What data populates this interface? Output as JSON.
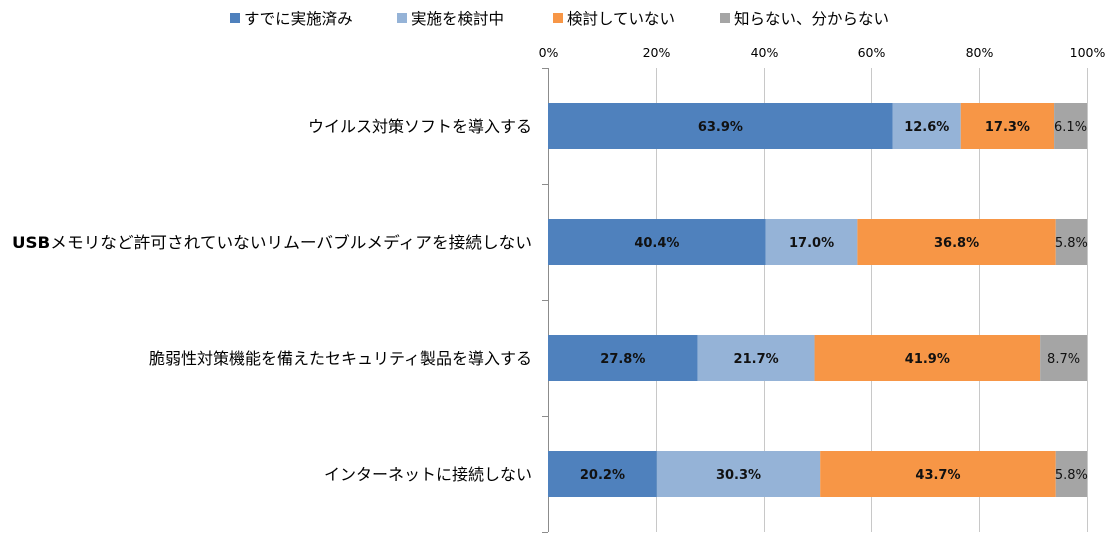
{
  "chart_data": {
    "type": "bar",
    "orientation": "horizontal",
    "stacked": "percent",
    "categories": [
      "ウイルス対策ソフトを導入する",
      "USBメモリなど許可されていないリムーバブルメディアを接続しない",
      "脆弱性対策機能を備えたセキュリティ製品を導入する",
      "インターネットに接続しない"
    ],
    "series": [
      {
        "name": "すでに実施済み",
        "color": "#4f81bd",
        "values": [
          63.9,
          40.4,
          27.8,
          20.2
        ],
        "labels": [
          "63.9%",
          "40.4%",
          "27.8%",
          "20.2%"
        ]
      },
      {
        "name": "実施を検討中",
        "color": "#95b3d7",
        "values": [
          12.6,
          17.0,
          21.7,
          30.3
        ],
        "labels": [
          "12.6%",
          "17.0%",
          "21.7%",
          "30.3%"
        ]
      },
      {
        "name": "検討していない",
        "color": "#f79646",
        "values": [
          17.3,
          36.8,
          41.9,
          43.7
        ],
        "labels": [
          "17.3%",
          "36.8%",
          "41.9%",
          "43.7%"
        ]
      },
      {
        "name": "知らない、分からない",
        "color": "#a5a5a5",
        "values": [
          6.1,
          5.8,
          8.7,
          5.8
        ],
        "labels": [
          "6.1%",
          "5.8%",
          "8.7%",
          "5.8%"
        ]
      }
    ],
    "x_ticks": [
      "0%",
      "20%",
      "40%",
      "60%",
      "80%",
      "100%"
    ],
    "xlim": [
      0,
      100
    ],
    "grid": true,
    "legend": "top"
  }
}
